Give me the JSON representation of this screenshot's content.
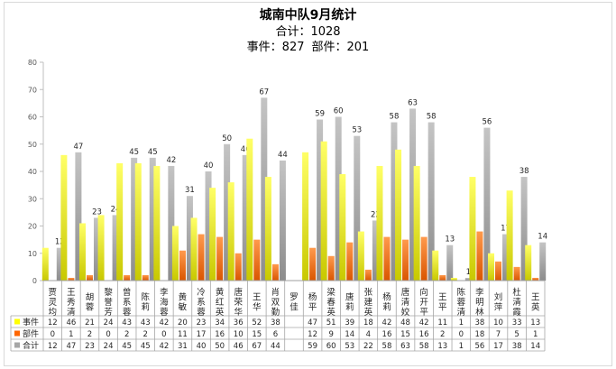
{
  "chart_data": {
    "type": "bar",
    "title": "城南中队9月统计",
    "subtitle_total_label": "合计：",
    "subtitle_total": "1028",
    "subtitle_events_label": "事件：",
    "subtitle_events": "827",
    "subtitle_parts_label": "部件：",
    "subtitle_parts": "201",
    "ylim": [
      0,
      80
    ],
    "yticks": [
      0,
      10,
      20,
      30,
      40,
      50,
      60,
      70,
      80
    ],
    "grid": false,
    "categories": [
      "贾灵均",
      "王秀清",
      "胡蓉",
      "黎誉芳",
      "曾系蓉",
      "陈莉",
      "李海蓉",
      "黄敏",
      "冷系蓉",
      "黄红英",
      "唐荣华",
      "王华",
      "肖双勤",
      "罗佳",
      "杨平",
      "梁春英",
      "唐莉",
      "张建英",
      "杨莉",
      "唐清姣",
      "向开平",
      "王平",
      "陈蓉清",
      "李明林",
      "刘萍",
      "杜清霞",
      "王英"
    ],
    "series": [
      {
        "name": "事件",
        "color": "#ffff00",
        "values": [
          12,
          46,
          21,
          24,
          43,
          43,
          42,
          20,
          23,
          34,
          36,
          52,
          38,
          null,
          47,
          51,
          39,
          18,
          42,
          48,
          42,
          11,
          1,
          38,
          10,
          33,
          13
        ]
      },
      {
        "name": "部件",
        "color": "#ff6600",
        "values": [
          0,
          1,
          2,
          0,
          2,
          2,
          0,
          11,
          17,
          16,
          10,
          15,
          6,
          null,
          12,
          9,
          14,
          4,
          16,
          15,
          16,
          2,
          0,
          18,
          7,
          5,
          1
        ]
      },
      {
        "name": "合计",
        "color": "#a6a6a6",
        "values": [
          12,
          47,
          23,
          24,
          45,
          45,
          42,
          31,
          40,
          50,
          46,
          67,
          44,
          null,
          59,
          60,
          53,
          22,
          58,
          63,
          58,
          13,
          1,
          56,
          17,
          38,
          14
        ]
      }
    ],
    "total_labels": [
      "12",
      "47",
      "23",
      "24",
      "45",
      "45",
      "42",
      "31",
      "40",
      "50",
      "46",
      "67",
      "44",
      "",
      "59",
      "60",
      "53",
      "22",
      "58",
      "63",
      "58",
      "13",
      "1",
      "56",
      "17",
      "38",
      "14"
    ],
    "table_rows": [
      {
        "label": "事件",
        "cells": [
          "12",
          "46",
          "21",
          "24",
          "43",
          "43",
          "42",
          "20",
          "23",
          "34",
          "36",
          "52",
          "38",
          "",
          "47",
          "51",
          "39",
          "18",
          "42",
          "48",
          "42",
          "11",
          "1",
          "38",
          "10",
          "33",
          "13"
        ]
      },
      {
        "label": "部件",
        "cells": [
          "0",
          "1",
          "2",
          "0",
          "2",
          "2",
          "0",
          "11",
          "17",
          "16",
          "10",
          "15",
          "6",
          "",
          "12",
          "9",
          "14",
          "4",
          "16",
          "15",
          "16",
          "2",
          "0",
          "18",
          "7",
          "5",
          "1"
        ]
      },
      {
        "label": "合计",
        "cells": [
          "12",
          "47",
          "23",
          "24",
          "45",
          "45",
          "42",
          "31",
          "40",
          "50",
          "46",
          "67",
          "44",
          "",
          "59",
          "60",
          "53",
          "22",
          "58",
          "63",
          "58",
          "13",
          "1",
          "56",
          "17",
          "38",
          "14"
        ]
      }
    ]
  }
}
